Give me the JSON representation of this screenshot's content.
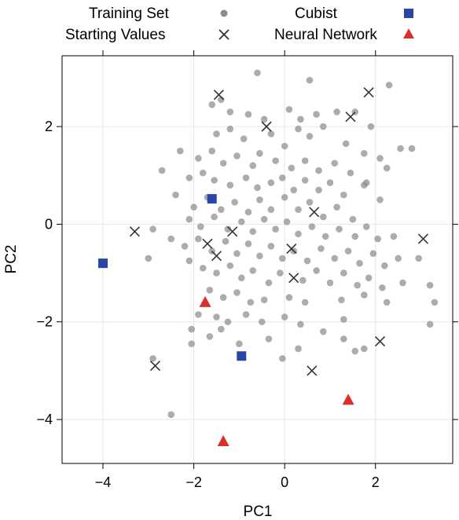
{
  "chart_data": {
    "type": "scatter",
    "title": "",
    "xlabel": "PC1",
    "ylabel": "PC2",
    "xlim": [
      -4.9,
      3.7
    ],
    "ylim": [
      -4.9,
      3.45
    ],
    "xticks": [
      -4,
      -2,
      0,
      2
    ],
    "yticks": [
      -4,
      -2,
      0,
      2
    ],
    "xtick_labels": [
      "−4",
      "−2",
      "0",
      "2"
    ],
    "ytick_labels": [
      "−4",
      "−2",
      "0",
      "2"
    ],
    "grid": true,
    "legend_position": "top",
    "legend": [
      {
        "label": "Training Set",
        "marker": "circle",
        "color": "#8c8c8c"
      },
      {
        "label": "Starting Values",
        "marker": "x",
        "color": "#333333"
      },
      {
        "label": "Cubist",
        "marker": "square",
        "color": "#2b44a8"
      },
      {
        "label": "Neural Network",
        "marker": "triangle",
        "color": "#d9302a"
      }
    ],
    "series": [
      {
        "name": "Training Set",
        "marker": "circle",
        "color": "#8c8c8c",
        "points": [
          [
            -0.6,
            3.1
          ],
          [
            0.55,
            2.95
          ],
          [
            2.3,
            2.85
          ],
          [
            -1.6,
            2.45
          ],
          [
            -1.4,
            2.55
          ],
          [
            -1.2,
            2.3
          ],
          [
            -0.8,
            2.25
          ],
          [
            -0.45,
            2.15
          ],
          [
            0.1,
            2.35
          ],
          [
            0.35,
            2.15
          ],
          [
            0.7,
            2.25
          ],
          [
            1.15,
            2.3
          ],
          [
            1.55,
            2.3
          ],
          [
            1.9,
            2.0
          ],
          [
            -1.5,
            1.85
          ],
          [
            -1.2,
            1.95
          ],
          [
            -0.9,
            1.75
          ],
          [
            -0.3,
            1.85
          ],
          [
            0.0,
            1.6
          ],
          [
            0.3,
            1.95
          ],
          [
            0.55,
            1.8
          ],
          [
            0.85,
            2.0
          ],
          [
            1.35,
            1.65
          ],
          [
            1.75,
            1.45
          ],
          [
            2.55,
            1.55
          ],
          [
            2.8,
            1.55
          ],
          [
            2.1,
            1.35
          ],
          [
            -2.3,
            1.5
          ],
          [
            -1.9,
            1.35
          ],
          [
            -1.6,
            1.5
          ],
          [
            -1.35,
            1.25
          ],
          [
            -1.05,
            1.4
          ],
          [
            -0.7,
            1.2
          ],
          [
            -0.55,
            1.45
          ],
          [
            -0.2,
            1.3
          ],
          [
            0.15,
            1.15
          ],
          [
            0.45,
            1.3
          ],
          [
            0.75,
            1.1
          ],
          [
            1.1,
            1.25
          ],
          [
            1.45,
            1.05
          ],
          [
            2.25,
            1.15
          ],
          [
            -2.7,
            1.1
          ],
          [
            -2.1,
            0.95
          ],
          [
            -1.8,
            1.05
          ],
          [
            -1.55,
            0.9
          ],
          [
            -1.2,
            0.8
          ],
          [
            -0.85,
            0.95
          ],
          [
            -0.6,
            0.75
          ],
          [
            -0.3,
            0.85
          ],
          [
            -0.05,
            0.95
          ],
          [
            0.2,
            0.7
          ],
          [
            0.45,
            0.9
          ],
          [
            0.75,
            0.7
          ],
          [
            1.0,
            0.85
          ],
          [
            1.3,
            0.6
          ],
          [
            1.75,
            0.8
          ],
          [
            1.8,
            0.85
          ],
          [
            2.1,
            0.5
          ],
          [
            -2.4,
            0.6
          ],
          [
            -2.0,
            0.35
          ],
          [
            -1.7,
            0.55
          ],
          [
            -1.4,
            0.3
          ],
          [
            -1.1,
            0.45
          ],
          [
            -0.8,
            0.25
          ],
          [
            -0.55,
            0.5
          ],
          [
            -0.3,
            0.3
          ],
          [
            0.0,
            0.55
          ],
          [
            0.3,
            0.3
          ],
          [
            0.55,
            0.45
          ],
          [
            0.85,
            0.15
          ],
          [
            1.15,
            0.35
          ],
          [
            1.5,
            0.1
          ],
          [
            -2.1,
            0.1
          ],
          [
            -1.85,
            -0.05
          ],
          [
            -1.55,
            0.15
          ],
          [
            -1.25,
            -0.1
          ],
          [
            -0.95,
            0.05
          ],
          [
            -0.7,
            -0.15
          ],
          [
            -0.45,
            0.1
          ],
          [
            -0.2,
            -0.1
          ],
          [
            0.05,
            0.05
          ],
          [
            0.3,
            -0.2
          ],
          [
            0.6,
            -0.05
          ],
          [
            0.9,
            -0.25
          ],
          [
            1.2,
            -0.1
          ],
          [
            1.55,
            -0.25
          ],
          [
            1.8,
            -0.05
          ],
          [
            2.05,
            -0.3
          ],
          [
            2.4,
            -0.25
          ],
          [
            -2.9,
            -0.1
          ],
          [
            -2.5,
            -0.3
          ],
          [
            -2.2,
            -0.45
          ],
          [
            -1.9,
            -0.3
          ],
          [
            -1.6,
            -0.55
          ],
          [
            -1.3,
            -0.35
          ],
          [
            -1.05,
            -0.6
          ],
          [
            -0.8,
            -0.4
          ],
          [
            -0.55,
            -0.65
          ],
          [
            -0.3,
            -0.45
          ],
          [
            -0.05,
            -0.7
          ],
          [
            0.2,
            -0.55
          ],
          [
            0.5,
            -0.75
          ],
          [
            0.8,
            -0.5
          ],
          [
            1.1,
            -0.7
          ],
          [
            1.4,
            -0.55
          ],
          [
            1.65,
            -0.8
          ],
          [
            1.95,
            -0.6
          ],
          [
            2.2,
            -0.85
          ],
          [
            2.5,
            -0.7
          ],
          [
            2.95,
            -0.7
          ],
          [
            -3.0,
            -0.7
          ],
          [
            -2.1,
            -0.75
          ],
          [
            -1.8,
            -0.9
          ],
          [
            -1.5,
            -1.0
          ],
          [
            -1.2,
            -0.85
          ],
          [
            -0.95,
            -1.1
          ],
          [
            -0.7,
            -0.95
          ],
          [
            -0.35,
            -1.2
          ],
          [
            -0.1,
            -1.0
          ],
          [
            0.4,
            -1.15
          ],
          [
            0.7,
            -0.95
          ],
          [
            1.0,
            -1.2
          ],
          [
            1.3,
            -1.0
          ],
          [
            1.6,
            -1.25
          ],
          [
            1.85,
            -1.1
          ],
          [
            2.15,
            -1.3
          ],
          [
            2.6,
            -1.2
          ],
          [
            -1.65,
            -1.35
          ],
          [
            -1.35,
            -1.5
          ],
          [
            -1.05,
            -1.4
          ],
          [
            -0.75,
            -1.6
          ],
          [
            -0.45,
            -1.55
          ],
          [
            0.1,
            -1.5
          ],
          [
            0.45,
            -1.6
          ],
          [
            1.25,
            -1.55
          ],
          [
            1.75,
            -1.45
          ],
          [
            2.25,
            -1.6
          ],
          [
            3.2,
            -1.25
          ],
          [
            3.3,
            -1.6
          ],
          [
            -1.9,
            -1.85
          ],
          [
            -1.5,
            -1.9
          ],
          [
            -1.25,
            -2.0
          ],
          [
            -0.85,
            -1.85
          ],
          [
            -0.5,
            -2.0
          ],
          [
            0.0,
            -1.9
          ],
          [
            0.35,
            -2.05
          ],
          [
            1.3,
            -1.95
          ],
          [
            3.2,
            -2.05
          ],
          [
            -2.05,
            -2.15
          ],
          [
            -1.4,
            -2.15
          ],
          [
            -0.35,
            -2.35
          ],
          [
            0.85,
            -2.2
          ],
          [
            1.3,
            -2.35
          ],
          [
            1.75,
            -2.55
          ],
          [
            1.55,
            -2.6
          ],
          [
            0.3,
            -2.55
          ],
          [
            -0.05,
            -2.75
          ],
          [
            -1.65,
            -2.3
          ],
          [
            -2.05,
            -2.45
          ],
          [
            -2.9,
            -2.75
          ],
          [
            -2.5,
            -3.9
          ],
          [
            -1.0,
            -2.45
          ]
        ]
      },
      {
        "name": "Starting Values",
        "marker": "x",
        "color": "#333333",
        "points": [
          [
            -1.45,
            2.65
          ],
          [
            -0.4,
            2.0
          ],
          [
            1.45,
            2.2
          ],
          [
            1.85,
            2.7
          ],
          [
            -3.3,
            -0.15
          ],
          [
            -1.7,
            -0.4
          ],
          [
            -1.5,
            -0.65
          ],
          [
            -1.15,
            -0.15
          ],
          [
            0.15,
            -0.5
          ],
          [
            0.65,
            0.25
          ],
          [
            0.2,
            -1.1
          ],
          [
            3.05,
            -0.3
          ],
          [
            -2.85,
            -2.9
          ],
          [
            0.6,
            -3.0
          ],
          [
            2.1,
            -2.4
          ]
        ]
      },
      {
        "name": "Cubist",
        "marker": "square",
        "color": "#2b44a8",
        "points": [
          [
            -4.0,
            -0.8
          ],
          [
            -1.6,
            0.52
          ],
          [
            -0.95,
            -2.7
          ]
        ]
      },
      {
        "name": "Neural Network",
        "marker": "triangle",
        "color": "#d9302a",
        "points": [
          [
            -1.75,
            -1.6
          ],
          [
            -1.35,
            -4.45
          ],
          [
            1.4,
            -3.6
          ]
        ]
      }
    ]
  }
}
